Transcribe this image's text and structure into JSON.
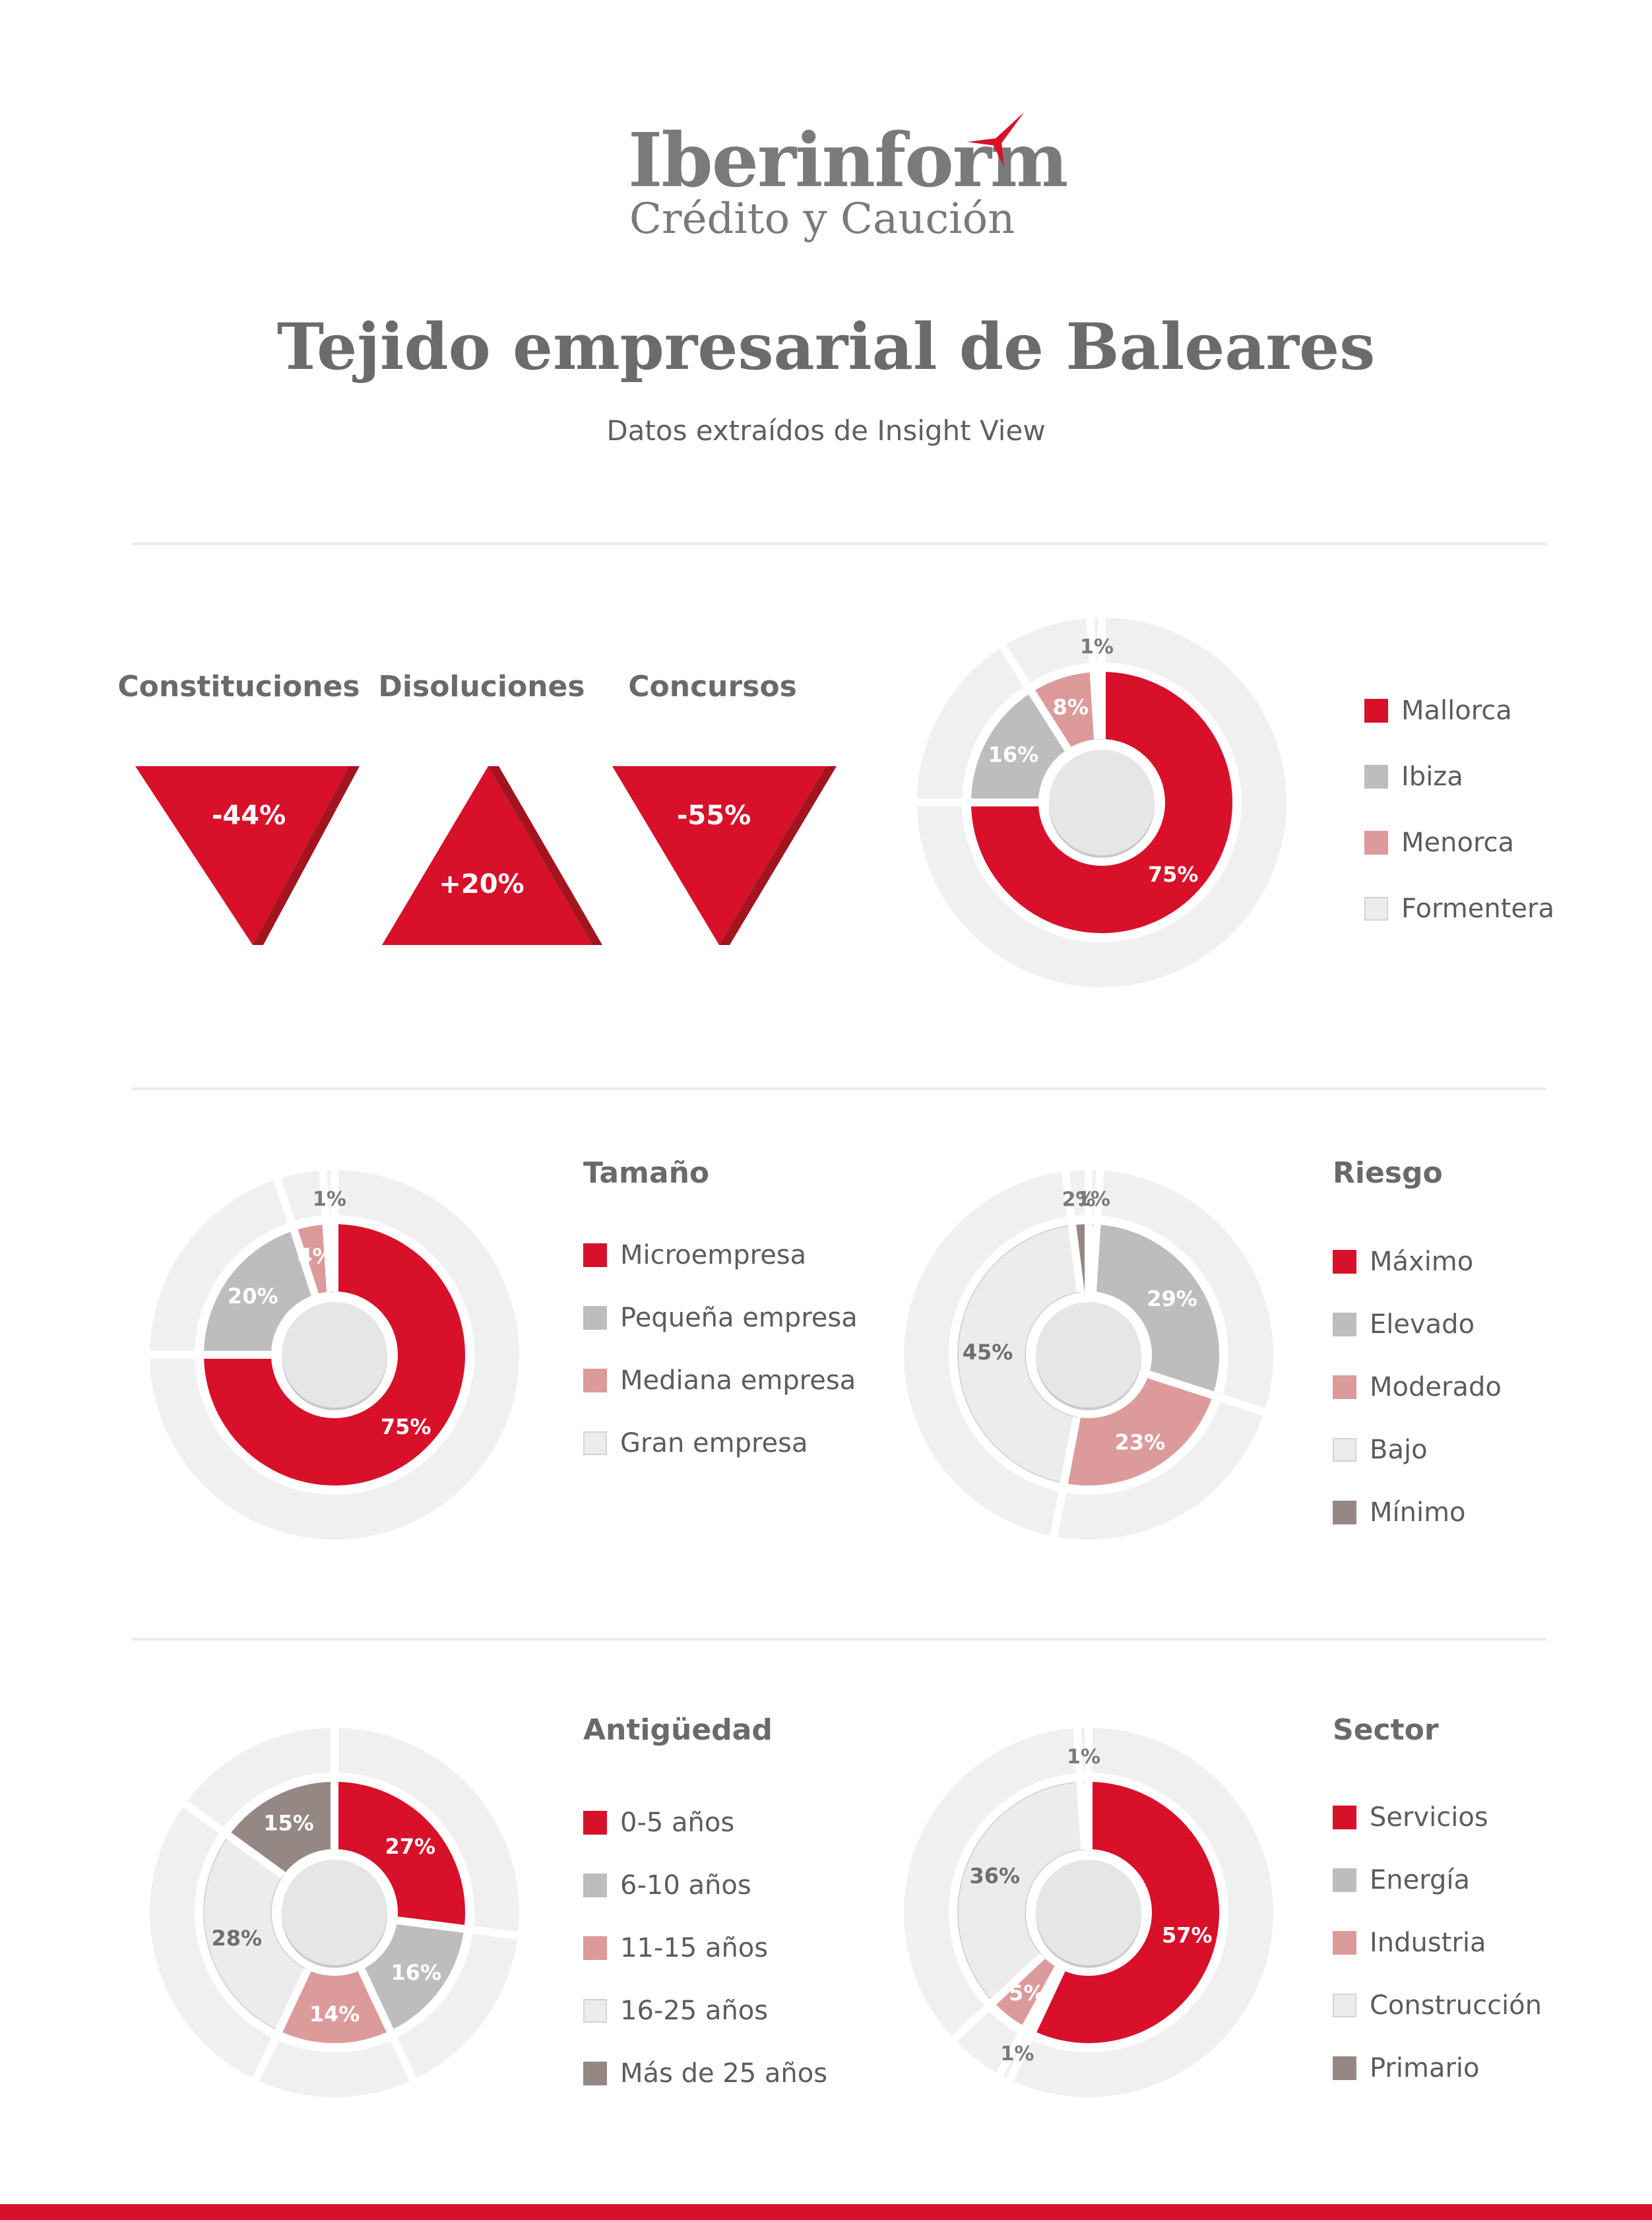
{
  "header": {
    "logo_name": "Iberinform",
    "logo_sub": "Crédito y Caución",
    "title": "Tejido empresarial de Baleares",
    "subtitle": "Datos extraídos de Insight View"
  },
  "colors": {
    "red": "#d8102a",
    "gray": "#bdbdbd",
    "pink": "#dd9a9a",
    "light": "#ececed",
    "brown": "#958884",
    "track": "#f0f0f1"
  },
  "kpis": [
    {
      "label": "Constituciones",
      "value": "-44%",
      "direction": "down"
    },
    {
      "label": "Disoluciones",
      "value": "+20%",
      "direction": "up"
    },
    {
      "label": "Concursos",
      "value": "-55%",
      "direction": "down"
    }
  ],
  "chart_data": [
    {
      "type": "pie",
      "title": "",
      "categories": [
        "Mallorca",
        "Ibiza",
        "Menorca",
        "Formentera"
      ],
      "values": [
        75,
        16,
        8,
        1
      ],
      "labels": [
        "75%",
        "16%",
        "8%",
        "1%"
      ],
      "colors": [
        "#d8102a",
        "#bdbdbd",
        "#dd9a9a",
        "#ececed"
      ]
    },
    {
      "type": "pie",
      "title": "Tamaño",
      "categories": [
        "Microempresa",
        "Pequeña empresa",
        "Mediana empresa",
        "Gran empresa"
      ],
      "values": [
        75,
        20,
        4,
        1
      ],
      "labels": [
        "75%",
        "20%",
        "4%",
        "1%"
      ],
      "colors": [
        "#d8102a",
        "#bdbdbd",
        "#dd9a9a",
        "#ececed"
      ]
    },
    {
      "type": "pie",
      "title": "Riesgo",
      "categories": [
        "Máximo",
        "Elevado",
        "Moderado",
        "Bajo",
        "Mínimo"
      ],
      "values": [
        1,
        29,
        23,
        45,
        2
      ],
      "labels": [
        "1%",
        "29%",
        "23%",
        "45%",
        "2%"
      ],
      "colors": [
        "#d8102a",
        "#bdbdbd",
        "#dd9a9a",
        "#ececed",
        "#958884"
      ]
    },
    {
      "type": "pie",
      "title": "Antigüedad",
      "categories": [
        "0-5 años",
        "6-10 años",
        "11-15 años",
        "16-25 años",
        "Más de 25 años"
      ],
      "values": [
        27,
        16,
        14,
        28,
        15
      ],
      "labels": [
        "27%",
        "16%",
        "14%",
        "28%",
        "15%"
      ],
      "colors": [
        "#d8102a",
        "#bdbdbd",
        "#dd9a9a",
        "#ececed",
        "#958884"
      ]
    },
    {
      "type": "pie",
      "title": "Sector",
      "categories": [
        "Servicios",
        "Energía",
        "Industria",
        "Construcción",
        "Primario"
      ],
      "values": [
        57,
        1,
        5,
        36,
        1
      ],
      "labels": [
        "57%",
        "1%",
        "5%",
        "36%",
        "1%"
      ],
      "colors": [
        "#d8102a",
        "#bdbdbd",
        "#dd9a9a",
        "#ececed",
        "#958884"
      ]
    }
  ]
}
